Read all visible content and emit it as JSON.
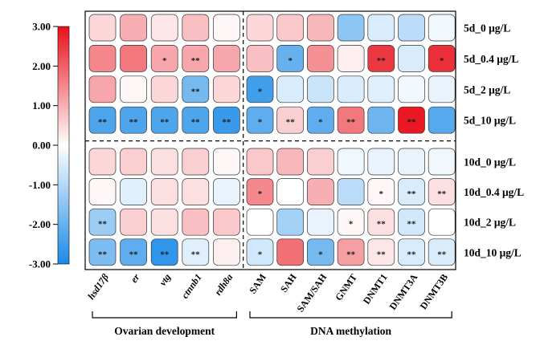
{
  "chart_data": {
    "type": "heatmap",
    "colorbar": {
      "ticks": [
        "3.00",
        "2.00",
        "1.00",
        "0.00",
        "-1.00",
        "-2.00",
        "-3.00"
      ],
      "range": [
        -3,
        3
      ],
      "colors": {
        "low": "#1a8ae6",
        "mid": "#ffffff",
        "high": "#e8101a"
      }
    },
    "rows": [
      "5d_0 μg/L",
      "5d_0.4 μg/L",
      "5d_2 μg/L",
      "5d_10 μg/L",
      "10d_0 μg/L",
      "10d_0.4 μg/L",
      "10d_2 μg/L",
      "10d_10 μg/L"
    ],
    "columns": [
      {
        "label": "hsd17β",
        "italic": true
      },
      {
        "label": "er",
        "italic": true
      },
      {
        "label": "vtg",
        "italic": true
      },
      {
        "label": "ctnnb1",
        "italic": true
      },
      {
        "label": "rdh8a",
        "italic": true
      },
      {
        "label": "SAM",
        "italic": false
      },
      {
        "label": "SAH",
        "italic": false
      },
      {
        "label": "SAM/SAH",
        "italic": false
      },
      {
        "label": "GNMT",
        "italic": false
      },
      {
        "label": "DNMT1",
        "italic": false
      },
      {
        "label": "DNMT3A",
        "italic": false
      },
      {
        "label": "DNMT3B",
        "italic": false
      }
    ],
    "groups": [
      {
        "label": "Ovarian development",
        "columns": [
          0,
          4
        ]
      },
      {
        "label": "DNA methylation",
        "columns": [
          5,
          11
        ]
      }
    ],
    "values": [
      [
        0.5,
        1.0,
        0.3,
        0.8,
        0.1,
        0.5,
        0.7,
        0.9,
        -1.5,
        -0.5,
        -0.9,
        -0.2
      ],
      [
        1.5,
        1.7,
        1.1,
        1.1,
        1.1,
        0.8,
        -2.0,
        1.4,
        0.2,
        2.5,
        -0.5,
        2.6
      ],
      [
        1.1,
        0.1,
        0.5,
        -1.8,
        0.5,
        -2.5,
        -0.5,
        -0.7,
        -0.5,
        -0.4,
        -0.2,
        -0.3
      ],
      [
        -2.3,
        -2.3,
        -2.3,
        -2.3,
        -2.6,
        -2.1,
        0.6,
        -2.1,
        1.7,
        -1.9,
        2.9,
        -2.2
      ],
      [
        0.5,
        0.6,
        0.4,
        0.6,
        0.1,
        0.7,
        0.9,
        0.6,
        -0.2,
        -0.3,
        -0.3,
        -0.2
      ],
      [
        0.1,
        -0.4,
        0.4,
        0.4,
        -0.3,
        1.5,
        0.0,
        1.0,
        -0.9,
        0.1,
        -0.5,
        0.4
      ],
      [
        -1.3,
        0.6,
        0.4,
        0.8,
        0.7,
        0.0,
        -1.2,
        -0.3,
        0.1,
        0.4,
        -0.6,
        0.0
      ],
      [
        -1.7,
        -2.1,
        -2.7,
        -0.4,
        0.2,
        -0.6,
        1.8,
        -1.8,
        1.2,
        0.3,
        -0.5,
        -0.5
      ]
    ],
    "significance": [
      [
        "",
        "",
        "",
        "",
        "",
        "",
        "",
        "",
        "",
        "",
        "",
        ""
      ],
      [
        "",
        "",
        "*",
        "**",
        "",
        "",
        "*",
        "",
        "",
        "**",
        "",
        "*"
      ],
      [
        "",
        "",
        "",
        "**",
        "",
        "*",
        "",
        "",
        "",
        "",
        "",
        ""
      ],
      [
        "**",
        "**",
        "**",
        "**",
        "**",
        "*",
        "**",
        "*",
        "**",
        "",
        "**",
        ""
      ],
      [
        "",
        "",
        "",
        "",
        "",
        "",
        "",
        "",
        "",
        "",
        "",
        ""
      ],
      [
        "",
        "",
        "",
        "",
        "",
        "*",
        "",
        "",
        "",
        "*",
        "**",
        "**"
      ],
      [
        "**",
        "",
        "",
        "",
        "",
        "",
        "",
        "",
        "*",
        "**",
        "**",
        ""
      ],
      [
        "**",
        "**",
        "**",
        "**",
        "",
        "*",
        "",
        "*",
        "**",
        "**",
        "**",
        "**"
      ]
    ]
  }
}
